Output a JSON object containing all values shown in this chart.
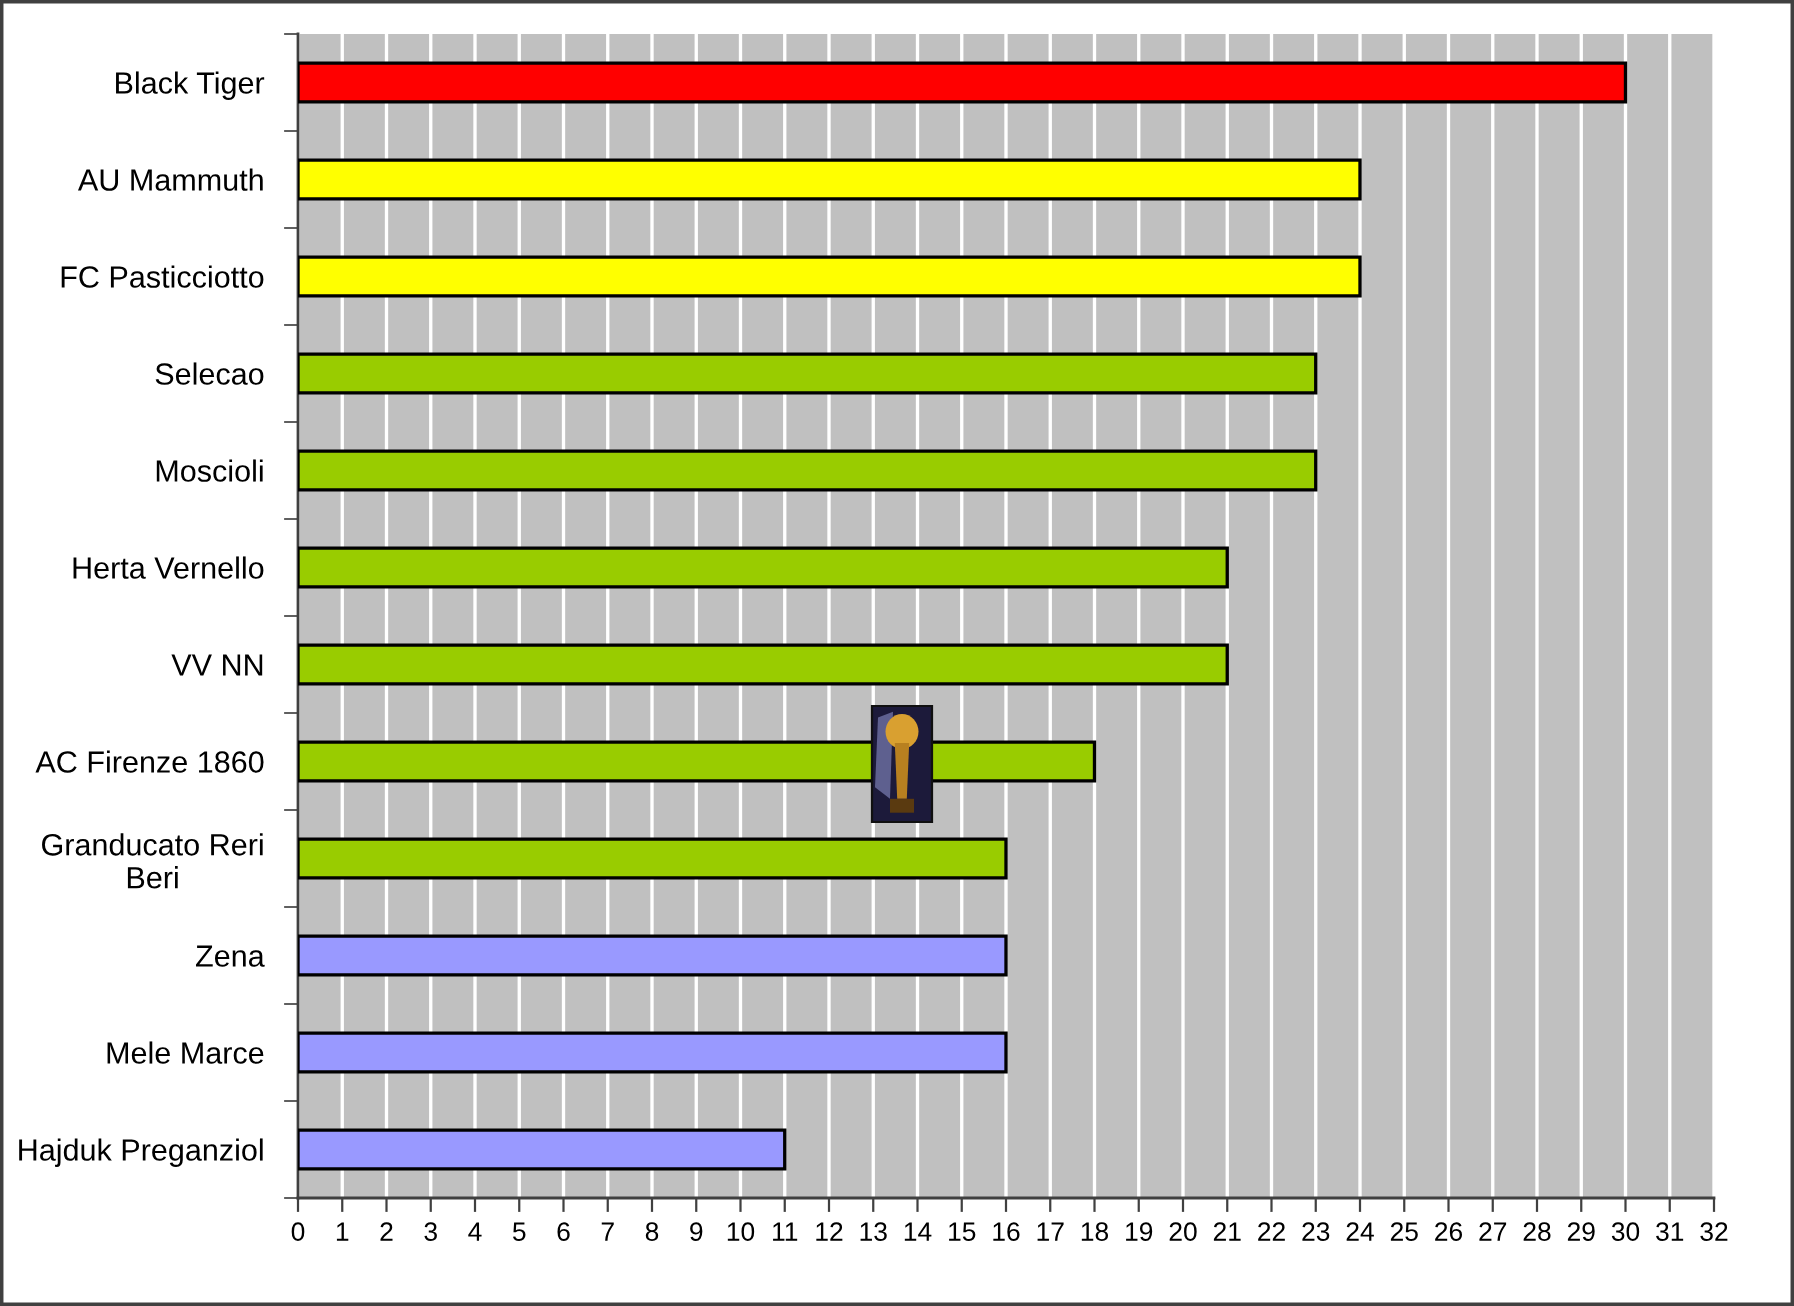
{
  "chart_data": {
    "type": "bar",
    "orientation": "horizontal",
    "categories": [
      "Black Tiger",
      "AU Mammuth",
      "FC Pasticciotto",
      "Selecao",
      "Moscioli",
      "Herta Vernello",
      "VV NN",
      "AC Firenze 1860",
      "Granducato Reri\nBeri",
      "Zena",
      "Mele Marce",
      "Hajduk Preganziol"
    ],
    "values": [
      30,
      24,
      24,
      23,
      23,
      21,
      21,
      18,
      16,
      16,
      16,
      11
    ],
    "colors": [
      "#ff0000",
      "#ffff00",
      "#ffff00",
      "#99cc00",
      "#99cc00",
      "#99cc00",
      "#99cc00",
      "#99cc00",
      "#99cc00",
      "#9999ff",
      "#9999ff",
      "#9999ff"
    ],
    "xlim": [
      0,
      32
    ],
    "xticks": [
      0,
      1,
      2,
      3,
      4,
      5,
      6,
      7,
      8,
      9,
      10,
      11,
      12,
      13,
      14,
      15,
      16,
      17,
      18,
      19,
      20,
      21,
      22,
      23,
      24,
      25,
      26,
      27,
      28,
      29,
      30,
      31,
      32
    ],
    "grid": "x"
  }
}
